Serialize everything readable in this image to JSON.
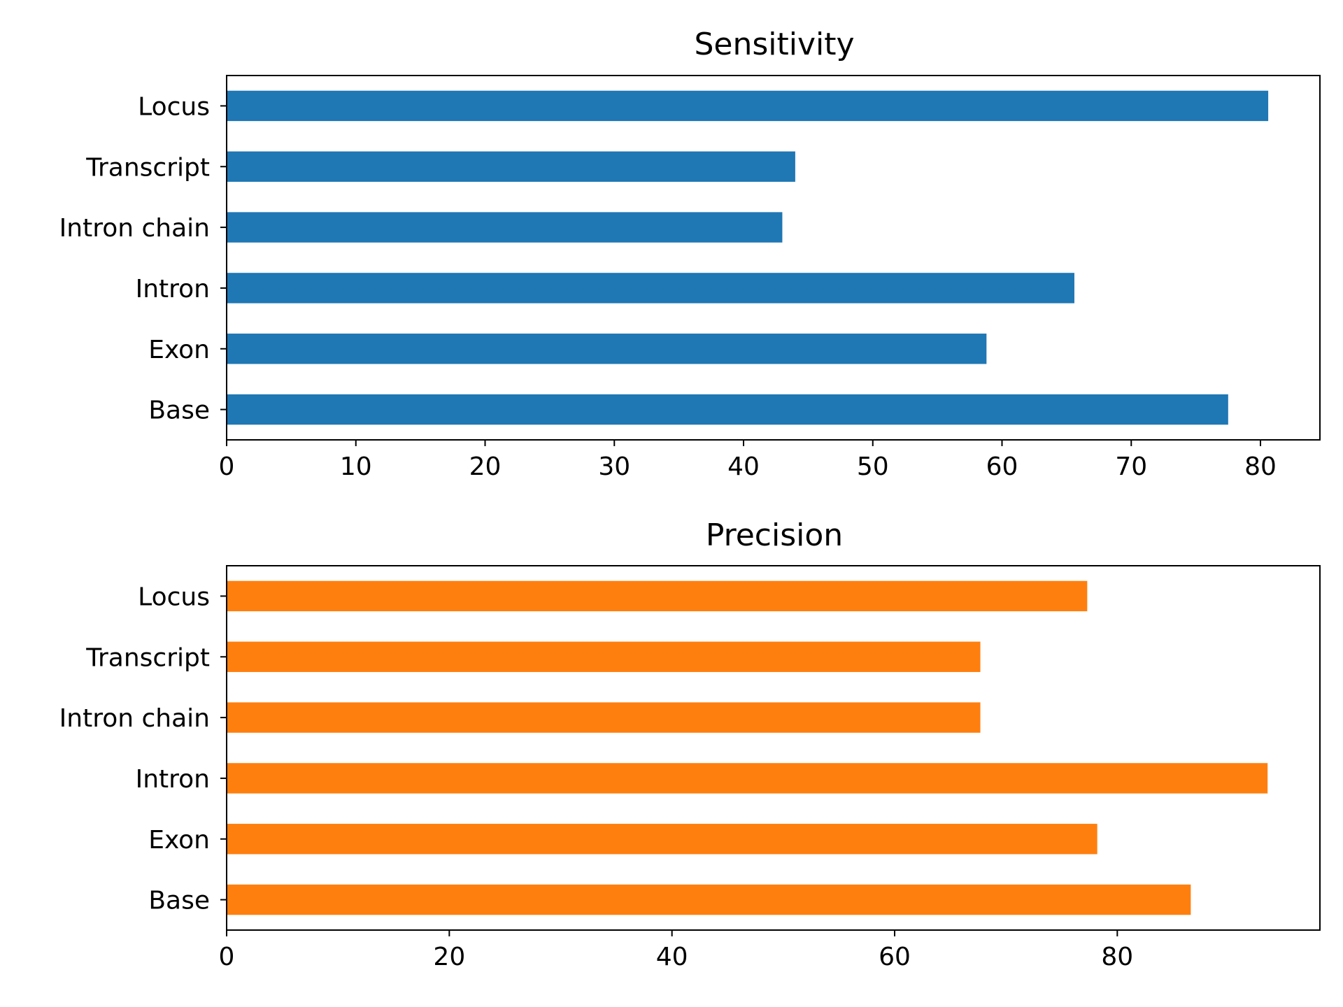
{
  "chart_data": [
    {
      "type": "bar",
      "orientation": "horizontal",
      "title": "Sensitivity",
      "categories": [
        "Locus",
        "Transcript",
        "Intron chain",
        "Intron",
        "Exon",
        "Base"
      ],
      "values": [
        80.6,
        44.0,
        43.0,
        65.6,
        58.8,
        77.5
      ],
      "xlim": [
        0,
        84.6
      ],
      "xticks": [
        0,
        10,
        20,
        30,
        40,
        50,
        60,
        70,
        80
      ],
      "color": "#1f77b4",
      "grid": false,
      "xlabel": "",
      "ylabel": ""
    },
    {
      "type": "bar",
      "orientation": "horizontal",
      "title": "Precision",
      "categories": [
        "Locus",
        "Transcript",
        "Intron chain",
        "Intron",
        "Exon",
        "Base"
      ],
      "values": [
        77.3,
        67.7,
        67.7,
        93.5,
        78.2,
        86.6
      ],
      "xlim": [
        0,
        98.2
      ],
      "xticks": [
        0,
        20,
        40,
        60,
        80
      ],
      "color": "#ff7f0e",
      "grid": false,
      "xlabel": "",
      "ylabel": ""
    }
  ]
}
